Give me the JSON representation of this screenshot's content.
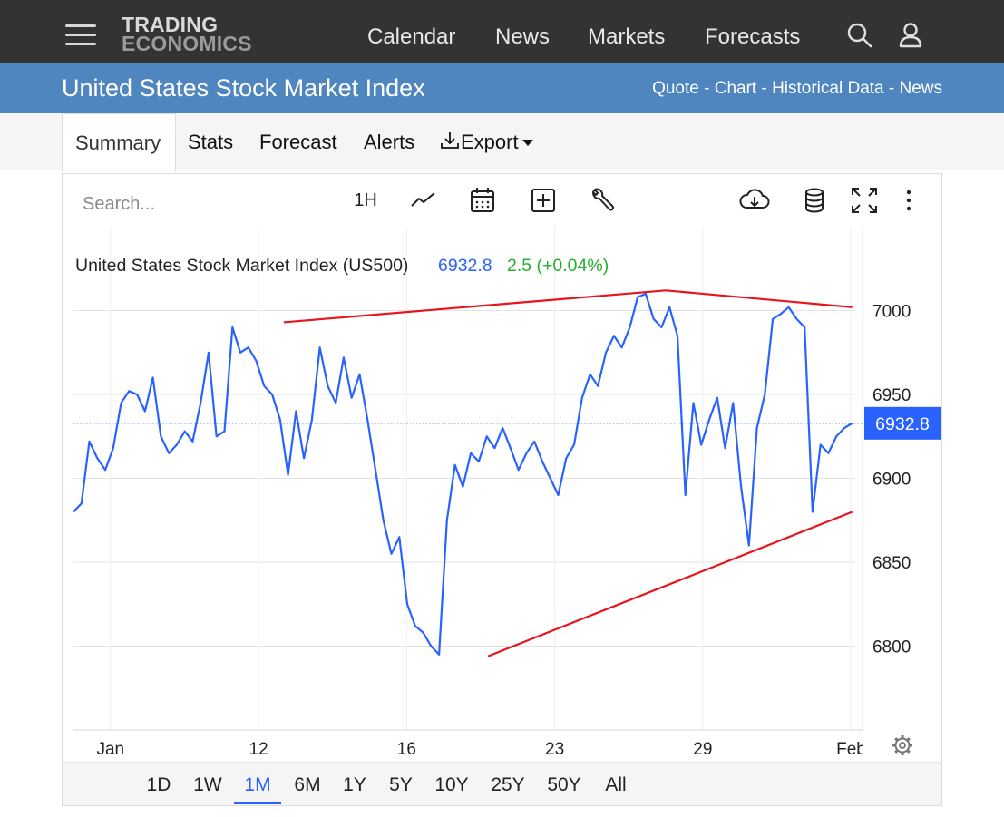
{
  "header": {
    "logo_line1": "TRADING",
    "logo_line2": "ECONOMICS",
    "nav": [
      "Calendar",
      "News",
      "Markets",
      "Forecasts"
    ],
    "icons": [
      "search-icon",
      "user-icon",
      "menu-icon"
    ]
  },
  "subheader": {
    "title": "United States Stock Market Index",
    "links": "Quote - Chart - Historical Data - News"
  },
  "tabs": [
    "Summary",
    "Stats",
    "Forecast",
    "Alerts",
    "Export"
  ],
  "toolbar": {
    "search_placeholder": "Search...",
    "interval_label": "1H",
    "icons": [
      "line-chart-icon",
      "calendar-icon",
      "add-icon",
      "wrench-icon",
      "download-cloud-icon",
      "database-icon",
      "fullscreen-icon",
      "more-icon"
    ]
  },
  "chart_data": {
    "type": "line",
    "title": "United States Stock Market Index (US500)",
    "last_value": "6932.8",
    "change": "2.5 (+0.04%)",
    "price_label": "6932.8",
    "ytick_labels": [
      "6800",
      "6850",
      "6900",
      "6950",
      "7000"
    ],
    "yticks": [
      6800,
      6850,
      6900,
      6950,
      7000
    ],
    "ylim": [
      6750,
      7050
    ],
    "xtick_labels": [
      "Jan",
      "12",
      "16",
      "23",
      "29",
      "Feb"
    ],
    "xtick_index": [
      2.5,
      12.5,
      22.5,
      32.5,
      42.5,
      52.5
    ],
    "xlim": [
      0,
      52.8
    ],
    "grid": true,
    "colors": {
      "line": "#2962ff",
      "trend": "#e8141c",
      "value": "#2962ff",
      "change": "#22b02e",
      "price_tag": "#2962ff"
    },
    "series": [
      {
        "values": [
          6880,
          6885,
          6922,
          6912,
          6905,
          6918,
          6945,
          6952,
          6950,
          6940,
          6960,
          6925,
          6915,
          6920,
          6928,
          6922,
          6945,
          6975,
          6925,
          6928,
          6990,
          6975,
          6978,
          6970,
          6955,
          6950,
          6935,
          6902,
          6940,
          6912,
          6935,
          6978,
          6955,
          6945,
          6972,
          6948,
          6962,
          6935,
          6905,
          6875,
          6855,
          6865,
          6825,
          6812,
          6808,
          6800,
          6795,
          6875,
          6908,
          6895,
          6915,
          6910,
          6925,
          6918,
          6930,
          6918,
          6905,
          6915,
          6922,
          6910,
          6900,
          6890,
          6912,
          6920,
          6948,
          6962,
          6955,
          6975,
          6985,
          6978,
          6990,
          7008,
          7010,
          6995,
          6990,
          7002,
          6985,
          6890,
          6945,
          6920,
          6935,
          6948,
          6918,
          6945,
          6895,
          6860,
          6930,
          6950,
          6995,
          6998,
          7002,
          6995,
          6990,
          6880,
          6920,
          6915,
          6925,
          6930,
          6932.8
        ]
      }
    ],
    "trendlines": [
      {
        "from": [
          14.2,
          6993
        ],
        "to": [
          40.0,
          7012
        ]
      },
      {
        "from": [
          40.0,
          7012
        ],
        "to": [
          52.6,
          7002
        ]
      },
      {
        "from": [
          28.0,
          6794
        ],
        "to": [
          52.6,
          6880
        ]
      }
    ]
  },
  "ranges": [
    "1D",
    "1W",
    "1M",
    "6M",
    "1Y",
    "5Y",
    "10Y",
    "25Y",
    "50Y",
    "All"
  ],
  "active_range": "1M"
}
